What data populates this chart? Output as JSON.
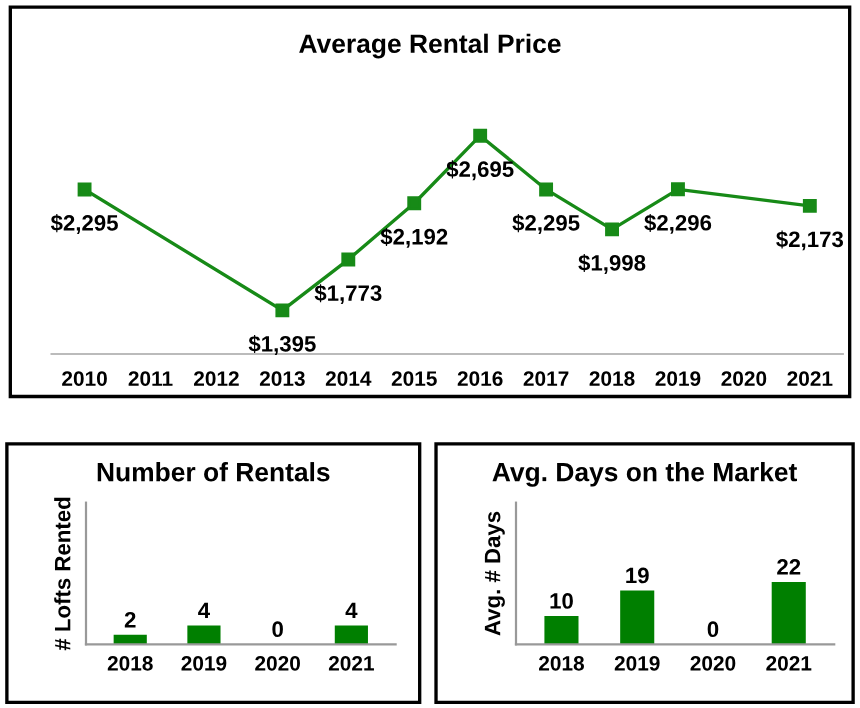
{
  "chart_data": [
    {
      "type": "line",
      "title": "Average Rental Price",
      "x": [
        2010,
        2013,
        2014,
        2015,
        2016,
        2017,
        2018,
        2019,
        2021
      ],
      "series": [
        {
          "color": "#178a17",
          "values": [
            2295,
            1395,
            1773,
            2192,
            2695,
            2295,
            1998,
            2296,
            2173
          ],
          "value_labels": [
            "$2,295",
            "$1,395",
            "$1,773",
            "$2,192",
            "$2,695",
            "$2,295",
            "$1,998",
            "$2,296",
            "$2,173"
          ]
        }
      ],
      "xlim": [
        2009.5,
        2021.5
      ],
      "xticks": [
        2010,
        2011,
        2012,
        2013,
        2014,
        2015,
        2016,
        2017,
        2018,
        2019,
        2020,
        2021
      ],
      "marker": "square",
      "line_style": "solid",
      "grid": false,
      "legend": false,
      "tick_labels": "x"
    },
    {
      "type": "bar",
      "title": "Number of Rentals",
      "ylabel": "# Lofts Rented",
      "categories": [
        "2018",
        "2019",
        "2020",
        "2021"
      ],
      "values": [
        2,
        4,
        0,
        4
      ],
      "color": "#007f00",
      "data_labels": true,
      "ylim": [
        0,
        30
      ],
      "grid": false,
      "legend": false,
      "tick_labels": "x"
    },
    {
      "type": "bar",
      "title": "Avg. Days on the Market",
      "ylabel": "Avg. # Days",
      "categories": [
        "2018",
        "2019",
        "2020",
        "2021"
      ],
      "values": [
        10,
        19,
        0,
        22
      ],
      "color": "#007f00",
      "data_labels": true,
      "ylim": [
        0,
        50
      ],
      "grid": false,
      "legend": false,
      "tick_labels": "x"
    }
  ]
}
